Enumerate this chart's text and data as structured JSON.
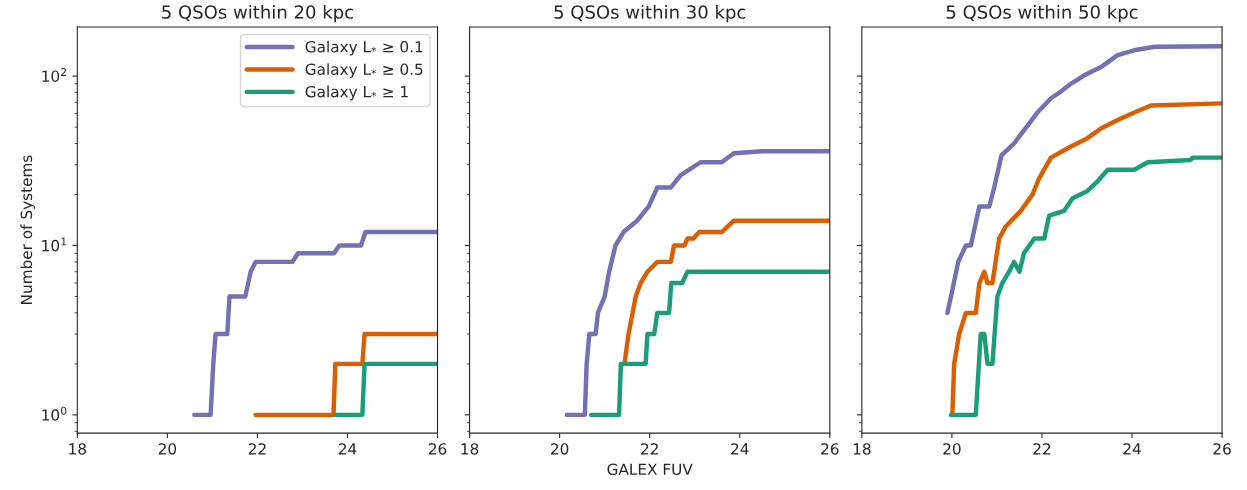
{
  "chart_data": [
    {
      "type": "line",
      "title": "5 QSOs within 20 kpc",
      "ylabel": "Number of Systems",
      "xlim": [
        18,
        26
      ],
      "xticks": [
        18,
        20,
        22,
        24,
        26
      ],
      "ylim": [
        0.78,
        195
      ],
      "log": "y",
      "yticks": [
        {
          "value": 1,
          "label": "10$^{0}$"
        },
        {
          "value": 10,
          "label": "10$^{1}$"
        },
        {
          "value": 100,
          "label": "10$^{2}$"
        }
      ],
      "legend": "top right",
      "grid": false,
      "series": [
        {
          "name": "Galaxy L$_{*}$ ≥ 0.1",
          "color": "#7570b3",
          "x": [
            20.6,
            20.96,
            21.02,
            21.07,
            21.33,
            21.38,
            21.73,
            21.85,
            21.96,
            22.78,
            22.9,
            23.7,
            23.82,
            24.3,
            24.4,
            26
          ],
          "values": [
            1,
            1,
            2,
            3,
            3,
            5,
            5,
            7,
            8,
            8,
            9,
            9,
            10,
            10,
            12,
            12
          ]
        },
        {
          "name": "Galaxy L$_{*}$ ≥ 0.5",
          "color": "#d95f02",
          "x": [
            21.96,
            23.69,
            23.73,
            24.33,
            24.38,
            26
          ],
          "values": [
            1,
            1,
            2,
            2,
            3,
            3
          ]
        },
        {
          "name": "Galaxy L$_{*}$ ≥ 1",
          "color": "#1b9e77",
          "x": [
            23.73,
            24.33,
            24.38,
            26
          ],
          "values": [
            1,
            1,
            2,
            2
          ]
        }
      ]
    },
    {
      "type": "line",
      "title": "5 QSOs within 30 kpc",
      "xlabel": "GALEX FUV",
      "xlim": [
        18,
        26
      ],
      "xticks": [
        18,
        20,
        22,
        24,
        26
      ],
      "ylim": [
        0.78,
        195
      ],
      "log": "y",
      "yticks": [
        {
          "value": 1,
          "label": null
        },
        {
          "value": 10,
          "label": null
        },
        {
          "value": 100,
          "label": null
        }
      ],
      "tick_labels": "x",
      "grid": false,
      "series": [
        {
          "color": "#7570b3",
          "x": [
            20.16,
            20.56,
            20.6,
            20.66,
            20.8,
            20.85,
            21.0,
            21.1,
            21.24,
            21.42,
            21.72,
            21.98,
            22.17,
            22.47,
            22.69,
            23.13,
            23.6,
            23.87,
            24.5,
            26
          ],
          "values": [
            1,
            1,
            2,
            3,
            3,
            4,
            5,
            7,
            10,
            12,
            14,
            17,
            22,
            22,
            26,
            31,
            31,
            35,
            36,
            36
          ]
        },
        {
          "color": "#d95f02",
          "x": [
            21.44,
            21.53,
            21.69,
            21.8,
            21.95,
            22.17,
            22.47,
            22.54,
            22.77,
            22.84,
            22.97,
            23.1,
            23.6,
            23.87,
            26
          ],
          "values": [
            2,
            3,
            5,
            6,
            7,
            8,
            8,
            10,
            10,
            11,
            11,
            12,
            12,
            14,
            14
          ]
        },
        {
          "color": "#1b9e77",
          "x": [
            20.7,
            21.32,
            21.36,
            21.91,
            21.95,
            22.1,
            22.17,
            22.43,
            22.48,
            22.72,
            22.84,
            26
          ],
          "values": [
            1,
            1,
            2,
            2,
            3,
            3,
            4,
            4,
            6,
            6,
            7,
            7
          ]
        }
      ]
    },
    {
      "type": "line",
      "title": "5 QSOs within 50 kpc",
      "xlim": [
        18,
        26
      ],
      "xticks": [
        18,
        20,
        22,
        24,
        26
      ],
      "ylim": [
        0.78,
        195
      ],
      "log": "y",
      "yticks": [
        {
          "value": 1,
          "label": null
        },
        {
          "value": 10,
          "label": null
        },
        {
          "value": 100,
          "label": null
        }
      ],
      "tick_labels": "x",
      "grid": false,
      "series": [
        {
          "color": "#7570b3",
          "x": [
            19.9,
            19.98,
            20.14,
            20.31,
            20.42,
            20.61,
            20.83,
            20.94,
            21.1,
            21.38,
            21.68,
            21.9,
            22.2,
            22.42,
            22.64,
            22.94,
            23.31,
            23.68,
            24.05,
            24.5,
            26
          ],
          "values": [
            4,
            5,
            8,
            10,
            10,
            17,
            17,
            22,
            34,
            40,
            51,
            61,
            74,
            81,
            90,
            101,
            113,
            133,
            142,
            149,
            150
          ]
        },
        {
          "color": "#d95f02",
          "x": [
            20.01,
            20.05,
            20.16,
            20.31,
            20.53,
            20.61,
            20.72,
            20.79,
            20.9,
            20.97,
            21.05,
            21.2,
            21.53,
            21.79,
            21.94,
            22.2,
            22.61,
            23.01,
            23.31,
            23.68,
            24.05,
            24.42,
            26
          ],
          "values": [
            1,
            2,
            3,
            4,
            4,
            6,
            7,
            6,
            6,
            8,
            11,
            13,
            16,
            20,
            25,
            33,
            38,
            43,
            49,
            55,
            61,
            67,
            69
          ]
        },
        {
          "color": "#1b9e77",
          "x": [
            19.98,
            20.53,
            20.64,
            20.72,
            20.79,
            20.9,
            21.01,
            21.12,
            21.27,
            21.38,
            21.5,
            21.6,
            21.83,
            22.05,
            22.16,
            22.49,
            22.68,
            23.01,
            23.24,
            23.46,
            24.05,
            24.35,
            25.3,
            25.35,
            26
          ],
          "values": [
            1,
            1,
            3,
            3,
            2,
            2,
            5,
            6,
            7,
            8,
            7,
            9,
            11,
            11,
            15,
            16,
            19,
            21,
            24,
            28,
            28,
            31,
            32,
            33,
            33
          ]
        }
      ]
    }
  ]
}
